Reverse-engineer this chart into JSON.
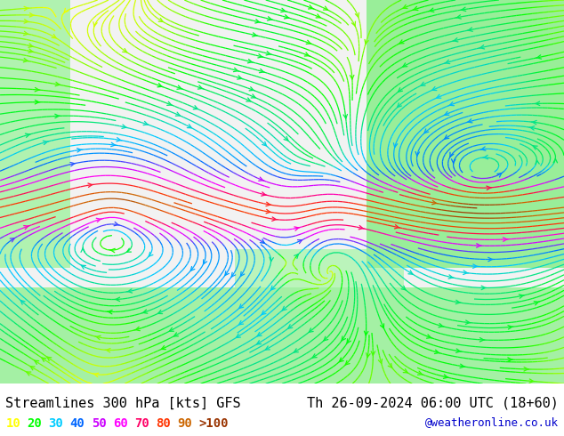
{
  "title_left": "Streamlines 300 hPa [kts] GFS",
  "title_right": "Th 26-09-2024 06:00 UTC (18+60)",
  "credit": "@weatheronline.co.uk",
  "legend_values": [
    "10",
    "20",
    "30",
    "40",
    "50",
    "60",
    "70",
    "80",
    "90",
    ">100"
  ],
  "legend_colors": [
    "#ffff00",
    "#00ff00",
    "#00ccff",
    "#0066ff",
    "#cc00ff",
    "#ff00ff",
    "#ff0066",
    "#ff3300",
    "#cc6600",
    "#993300"
  ],
  "bg_color": "#ffffff",
  "map_bg_light": "#e8e8e8",
  "map_bg_green": "#90ee90",
  "title_fontsize": 11,
  "credit_color": "#0000cc",
  "streamline_seed_points": 800,
  "figsize": [
    6.34,
    4.9
  ],
  "dpi": 100
}
